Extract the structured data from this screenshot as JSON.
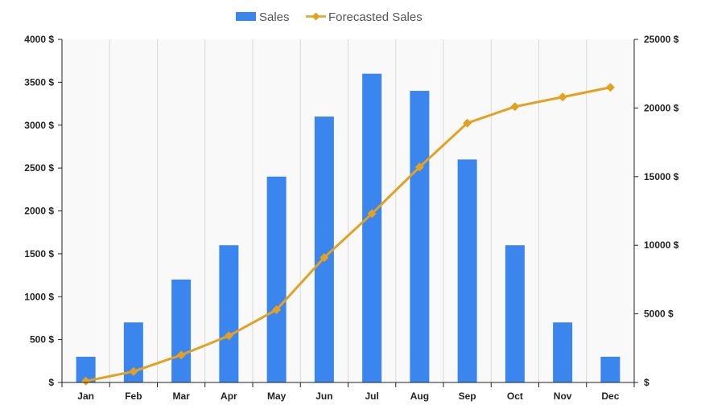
{
  "chart_data": {
    "type": "bar",
    "categories": [
      "Jan",
      "Feb",
      "Mar",
      "Apr",
      "May",
      "Jun",
      "Jul",
      "Aug",
      "Sep",
      "Oct",
      "Nov",
      "Dec"
    ],
    "series": [
      {
        "name": "Sales",
        "type": "bar",
        "axis": "left",
        "color": "#3b86ee",
        "values": [
          300,
          700,
          1200,
          1600,
          2400,
          3100,
          3600,
          3400,
          2600,
          1600,
          700,
          300
        ]
      },
      {
        "name": "Forecasted Sales",
        "type": "line",
        "axis": "right",
        "color": "#e3a122",
        "marker": "diamond",
        "values": [
          100,
          800,
          2000,
          3400,
          5300,
          9100,
          12300,
          15700,
          18900,
          20100,
          20800,
          21500
        ]
      }
    ],
    "y_left": {
      "range": [
        0,
        4000
      ],
      "ticks": [
        0,
        500,
        1000,
        1500,
        2000,
        2500,
        3000,
        3500,
        4000
      ],
      "tick_labels": [
        "$",
        "500 $",
        "1000 $",
        "1500 $",
        "2000 $",
        "2500 $",
        "3000 $",
        "3500 $",
        "4000 $"
      ]
    },
    "y_right": {
      "range": [
        0,
        25000
      ],
      "ticks": [
        0,
        5000,
        10000,
        15000,
        20000,
        25000
      ],
      "tick_labels": [
        "$",
        "5000 $",
        "10000 $",
        "15000 $",
        "20000 $",
        "25000 $"
      ]
    },
    "grid": "vertical",
    "legend_position": "top-center",
    "title": "",
    "xlabel": "",
    "ylabel": ""
  }
}
